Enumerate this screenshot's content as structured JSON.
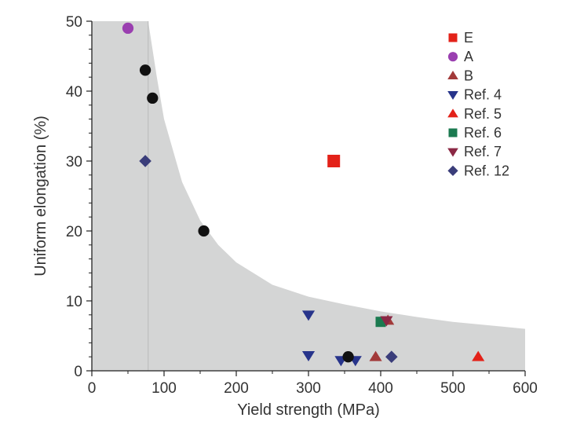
{
  "chart_data": {
    "type": "scatter",
    "title": "",
    "xlabel": "Yield strength (MPa)",
    "ylabel": "Uniform elongation (%)",
    "xlim": [
      0,
      600
    ],
    "ylim": [
      0,
      50
    ],
    "xticks": [
      "0",
      "100",
      "200",
      "300",
      "400",
      "500",
      "600"
    ],
    "yticks": [
      "0",
      "10",
      "20",
      "30",
      "40",
      "50"
    ],
    "xtick_values": [
      0,
      100,
      200,
      300,
      400,
      500,
      600
    ],
    "ytick_values": [
      0,
      10,
      20,
      30,
      40,
      50
    ],
    "grid": false,
    "legend_position": "top-right",
    "shaded_region": {
      "description_curve": [
        [
          78,
          50
        ],
        [
          90,
          42
        ],
        [
          100,
          36
        ],
        [
          125,
          27
        ],
        [
          150,
          21.5
        ],
        [
          175,
          18
        ],
        [
          200,
          15.5
        ],
        [
          250,
          12.3
        ],
        [
          300,
          10.6
        ],
        [
          350,
          9.5
        ],
        [
          400,
          8.5
        ],
        [
          450,
          7.7
        ],
        [
          500,
          7
        ],
        [
          550,
          6.5
        ],
        [
          600,
          6
        ]
      ],
      "color": "#d4d5d5",
      "vertical_line_x": 78
    },
    "series": [
      {
        "name": "E",
        "marker": "square",
        "color": "#e32219",
        "points": [
          [
            335,
            30
          ]
        ]
      },
      {
        "name": "A",
        "marker": "circle",
        "color": "#9a3fb0",
        "points": [
          [
            50,
            49
          ]
        ]
      },
      {
        "name": "B",
        "marker": "triangle-up",
        "color": "#a23a3a",
        "points": [
          [
            393,
            2
          ],
          [
            410,
            7.2
          ]
        ]
      },
      {
        "name": "Ref. 4",
        "marker": "triangle-down",
        "color": "#27348b",
        "points": [
          [
            300,
            8
          ],
          [
            300,
            2.2
          ],
          [
            345,
            1.5
          ],
          [
            365,
            1.5
          ]
        ]
      },
      {
        "name": "Ref. 5",
        "marker": "triangle-up",
        "color": "#e32219",
        "points": [
          [
            535,
            2
          ]
        ]
      },
      {
        "name": "Ref. 6",
        "marker": "square",
        "color": "#1b7a50",
        "points": [
          [
            400,
            7
          ]
        ]
      },
      {
        "name": "Ref. 7",
        "marker": "triangle-down",
        "color": "#8b2845",
        "points": [
          [
            408,
            7.2
          ]
        ]
      },
      {
        "name": "Ref. 12",
        "marker": "diamond",
        "color": "#3a3d7a",
        "points": [
          [
            74,
            30
          ],
          [
            415,
            2
          ]
        ]
      },
      {
        "name": "",
        "marker": "circle",
        "color": "#111111",
        "legend": false,
        "points": [
          [
            74,
            43
          ],
          [
            84,
            39
          ],
          [
            155,
            20
          ],
          [
            355,
            2
          ]
        ]
      }
    ]
  }
}
